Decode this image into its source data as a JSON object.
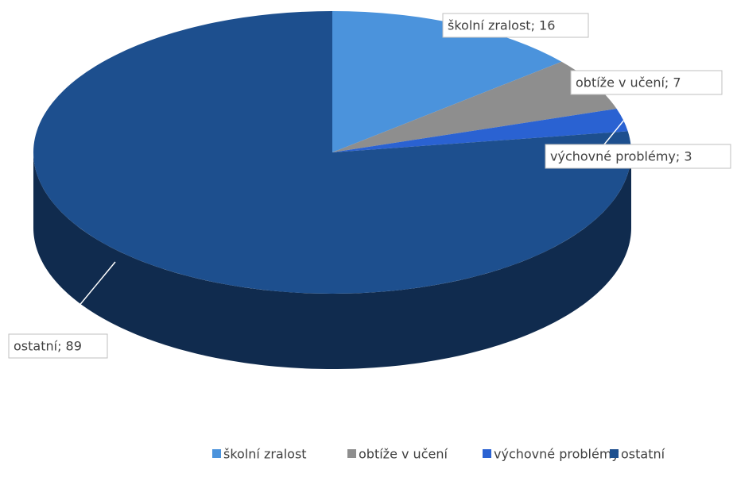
{
  "chart_data": {
    "type": "pie3d",
    "categories": [
      "školní zralost",
      "obtíže v učení",
      "výchovné problémy",
      "ostatní"
    ],
    "values": [
      16,
      7,
      3,
      89
    ],
    "value_labels": [
      "školní zralost; 16",
      "obtíže v učení; 7",
      "výchovné problémy; 3",
      "ostatní; 89"
    ],
    "colors": [
      "#4b93dc",
      "#8e8e8e",
      "#2a62d2",
      "#1d4f8e"
    ],
    "legend": "bottom"
  }
}
